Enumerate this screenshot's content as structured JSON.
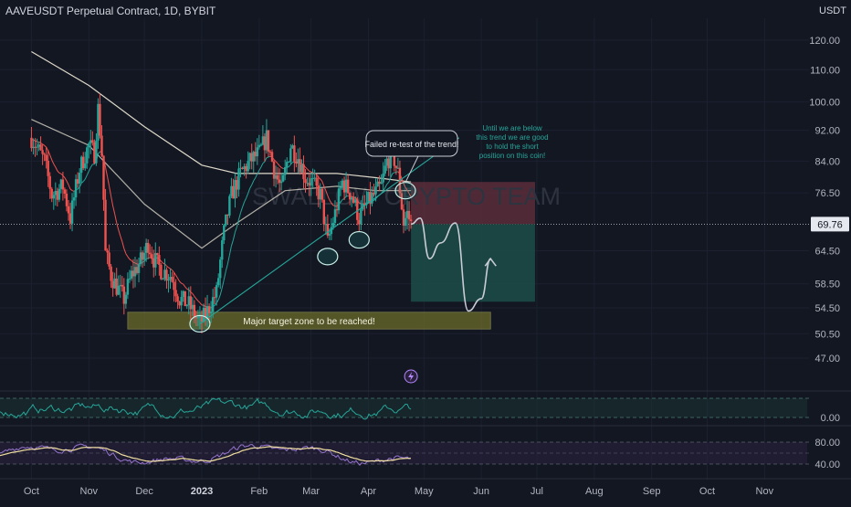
{
  "header": {
    "symbol_title": "AAVEUSDT Perpetual Contract, 1D, BYBIT",
    "price_unit": "USDT"
  },
  "watermark": "SWALLOW CRYPTO TEAM",
  "colors": {
    "background": "#131722",
    "up_candle": "#26a69a",
    "down_candle": "#ef5350",
    "slow_ma": "#e8e3d3",
    "fast_ma": "#26a69a",
    "red_ma": "#ef5350",
    "target_zone": "#6b6b2a",
    "stop_zone": "#5a2e3a",
    "profit_zone": "#1c4a46",
    "rsi_line": "#26a69a",
    "osc_line": "#9575cd",
    "osc_signal": "#f0e0a0"
  },
  "annotations": {
    "retest_label": "Failed re-test of the trend!",
    "trend_note": [
      "Until we are below",
      "this trend we are good",
      "to hold the short",
      "position on this coin!"
    ],
    "target_label": "Major target zone to be reached!",
    "lightning_icon": "lightning-icon"
  },
  "chart_data": [
    {
      "type": "candlestick",
      "title": "AAVEUSDT Perpetual Contract, 1D, BYBIT",
      "x_tick_labels": [
        "Oct",
        "Nov",
        "Dec",
        "2023",
        "Feb",
        "Mar",
        "Apr",
        "May",
        "Jun",
        "Jul",
        "Aug",
        "Sep",
        "Oct",
        "Nov"
      ],
      "y_tick_labels": [
        "120.00",
        "110.00",
        "100.00",
        "92.00",
        "84.00",
        "76.50",
        "69.76",
        "64.50",
        "58.50",
        "54.50",
        "50.50",
        "47.00"
      ],
      "y_scale": "log",
      "current_price": "69.76",
      "price_path": [
        [
          "2022-10-01",
          90
        ],
        [
          "2022-10-08",
          84
        ],
        [
          "2022-10-12",
          76
        ],
        [
          "2022-10-18",
          78
        ],
        [
          "2022-10-22",
          71
        ],
        [
          "2022-10-27",
          82
        ],
        [
          "2022-11-01",
          88
        ],
        [
          "2022-11-04",
          86
        ],
        [
          "2022-11-06",
          98
        ],
        [
          "2022-11-08",
          86
        ],
        [
          "2022-11-10",
          64
        ],
        [
          "2022-11-13",
          60
        ],
        [
          "2022-11-16",
          58
        ],
        [
          "2022-11-20",
          56
        ],
        [
          "2022-11-24",
          60
        ],
        [
          "2022-11-30",
          63
        ],
        [
          "2022-12-03",
          66
        ],
        [
          "2022-12-06",
          63
        ],
        [
          "2022-12-10",
          61
        ],
        [
          "2022-12-15",
          60
        ],
        [
          "2022-12-20",
          56
        ],
        [
          "2022-12-25",
          55
        ],
        [
          "2022-12-31",
          52
        ],
        [
          "2023-01-04",
          54
        ],
        [
          "2023-01-09",
          57
        ],
        [
          "2023-01-13",
          68
        ],
        [
          "2023-01-17",
          76
        ],
        [
          "2023-01-22",
          81
        ],
        [
          "2023-01-27",
          84
        ],
        [
          "2023-02-01",
          86
        ],
        [
          "2023-02-05",
          90
        ],
        [
          "2023-02-09",
          82
        ],
        [
          "2023-02-13",
          77
        ],
        [
          "2023-02-18",
          88
        ],
        [
          "2023-02-22",
          85
        ],
        [
          "2023-02-26",
          80
        ],
        [
          "2023-03-01",
          79
        ],
        [
          "2023-03-06",
          76
        ],
        [
          "2023-03-10",
          66
        ],
        [
          "2023-03-14",
          72
        ],
        [
          "2023-03-18",
          79
        ],
        [
          "2023-03-23",
          76
        ],
        [
          "2023-03-27",
          71
        ],
        [
          "2023-03-31",
          74
        ],
        [
          "2023-04-04",
          76
        ],
        [
          "2023-04-08",
          78
        ],
        [
          "2023-04-11",
          84
        ],
        [
          "2023-04-14",
          86
        ],
        [
          "2023-04-17",
          81
        ],
        [
          "2023-04-20",
          70
        ],
        [
          "2023-04-22",
          72
        ],
        [
          "2023-04-24",
          69.76
        ]
      ],
      "moving_averages": [
        {
          "name": "",
          "points": [
            [
              "2022-10-01",
              116
            ],
            [
              "2022-11-01",
              105
            ],
            [
              "2022-12-01",
              93
            ],
            [
              "2023-01-01",
              83
            ],
            [
              "2023-01-20",
              81
            ],
            [
              "2023-02-15",
              81
            ],
            [
              "2023-03-15",
              81
            ],
            [
              "2023-04-05",
              80
            ],
            [
              "2023-04-24",
              79
            ]
          ]
        },
        {
          "name": "",
          "points": [
            [
              "2022-10-01",
              95
            ],
            [
              "2022-11-01",
              88
            ],
            [
              "2022-12-01",
              74
            ],
            [
              "2023-01-01",
              65
            ],
            [
              "2023-01-20",
              70
            ],
            [
              "2023-02-15",
              77
            ],
            [
              "2023-03-15",
              78
            ],
            [
              "2023-04-05",
              77
            ],
            [
              "2023-04-24",
              77
            ]
          ]
        }
      ],
      "trendline": {
        "from": [
          "2022-12-31",
          52
        ],
        "to": [
          "2023-05-20",
          90
        ]
      },
      "target_zone": {
        "y_top": 53.8,
        "y_bottom": 51.2
      },
      "trade_zones": {
        "stop": [
          69.76,
          79
        ],
        "profit": [
          55.5,
          69.76
        ]
      },
      "projection_path": [
        [
          "2023-04-24",
          69.76
        ],
        [
          "2023-04-29",
          71
        ],
        [
          "2023-05-04",
          63
        ],
        [
          "2023-05-10",
          66
        ],
        [
          "2023-05-18",
          70
        ],
        [
          "2023-05-25",
          54
        ],
        [
          "2023-06-01",
          56
        ],
        [
          "2023-06-06",
          63
        ]
      ]
    },
    {
      "type": "line",
      "name": "",
      "y_tick_labels": [
        "0.00"
      ],
      "range": [
        0,
        100
      ]
    },
    {
      "type": "line",
      "name": "",
      "y_tick_labels": [
        "80.00",
        "40.00"
      ],
      "range": [
        20,
        100
      ]
    }
  ]
}
